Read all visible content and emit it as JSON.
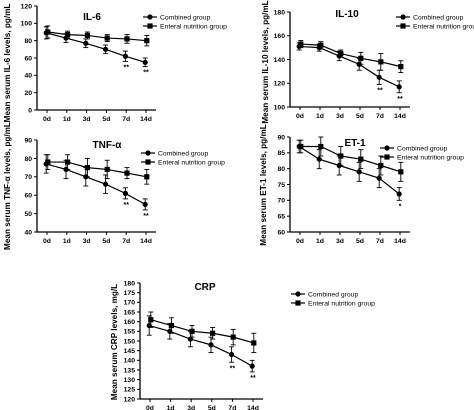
{
  "chart_data": [
    {
      "type": "line",
      "title": "IL-6",
      "ylabel": "Mean serum IL-6 levels, pg/mL",
      "xlabel": "",
      "categories": [
        "0d",
        "1d",
        "3d",
        "5d",
        "7d",
        "14d"
      ],
      "ylim": [
        0,
        120
      ],
      "yticks": [
        0,
        20,
        40,
        60,
        80,
        100,
        120
      ],
      "legend_position": "top-right",
      "series": [
        {
          "name": "Combined group",
          "marker": "circle",
          "values": [
            89,
            83,
            77,
            70,
            62,
            55
          ],
          "err": [
            7,
            5,
            5,
            5,
            6,
            5
          ]
        },
        {
          "name": "Enteral nutrition group",
          "marker": "square",
          "values": [
            90,
            87,
            86,
            83,
            82,
            80
          ],
          "err": [
            7,
            4,
            4,
            4,
            5,
            6
          ]
        }
      ],
      "annotations": [
        {
          "category": "7d",
          "text": "**"
        },
        {
          "category": "14d",
          "text": "**"
        }
      ]
    },
    {
      "type": "line",
      "title": "IL-10",
      "ylabel": "Mean serum IL-10 levels, pg/mL",
      "xlabel": "",
      "categories": [
        "0d",
        "1d",
        "3d",
        "5d",
        "7d",
        "14d"
      ],
      "ylim": [
        100,
        180
      ],
      "yticks": [
        100,
        120,
        140,
        160,
        180
      ],
      "legend_position": "top-right",
      "series": [
        {
          "name": "Combined group",
          "marker": "circle",
          "values": [
            151,
            150,
            143,
            136,
            125,
            117
          ],
          "err": [
            3,
            3,
            4,
            5,
            6,
            5
          ]
        },
        {
          "name": "Enteral nutrition group",
          "marker": "square",
          "values": [
            153,
            152,
            145,
            141,
            138,
            134
          ],
          "err": [
            3,
            3,
            3,
            5,
            7,
            5
          ]
        }
      ],
      "annotations": [
        {
          "category": "7d",
          "text": "**"
        },
        {
          "category": "14d",
          "text": "**"
        }
      ]
    },
    {
      "type": "line",
      "title": "TNF-α",
      "ylabel": "Mean serum TNF-α levels, pg/mL",
      "xlabel": "",
      "categories": [
        "0d",
        "1d",
        "3d",
        "5d",
        "7d",
        "14d"
      ],
      "ylim": [
        40,
        90
      ],
      "yticks": [
        40,
        50,
        60,
        70,
        80,
        90
      ],
      "legend_position": "top-right",
      "series": [
        {
          "name": "Combined group",
          "marker": "circle",
          "values": [
            77,
            74,
            70,
            66,
            61,
            55
          ],
          "err": [
            5,
            5,
            5,
            5,
            3,
            3
          ]
        },
        {
          "name": "Enteral nutrition group",
          "marker": "square",
          "values": [
            78,
            78,
            75,
            74,
            72,
            70
          ],
          "err": [
            4,
            4,
            5,
            5,
            3,
            4
          ]
        }
      ],
      "annotations": [
        {
          "category": "7d",
          "text": "**"
        },
        {
          "category": "14d",
          "text": "**"
        }
      ]
    },
    {
      "type": "line",
      "title": "ET-1",
      "ylabel": "Mean serum ET-1 levels, pg/mL",
      "xlabel": "",
      "categories": [
        "0d",
        "1d",
        "3d",
        "5d",
        "7d",
        "14d"
      ],
      "ylim": [
        60,
        90
      ],
      "yticks": [
        60,
        65,
        70,
        75,
        80,
        85,
        90
      ],
      "legend_position": "top-right",
      "series": [
        {
          "name": "Combined group",
          "marker": "circle",
          "values": [
            87,
            83,
            81,
            79,
            77,
            72
          ],
          "err": [
            2,
            3,
            3,
            3,
            3,
            2
          ]
        },
        {
          "name": "Enteral nutrition group",
          "marker": "square",
          "values": [
            87,
            87,
            84,
            83,
            81,
            79
          ],
          "err": [
            2,
            3,
            3,
            3,
            3,
            3
          ]
        }
      ],
      "annotations": [
        {
          "category": "14d",
          "text": "*"
        }
      ]
    },
    {
      "type": "line",
      "title": "CRP",
      "ylabel": "Mean serum CRP levels, mg/L",
      "xlabel": "",
      "categories": [
        "0d",
        "1d",
        "3d",
        "5d",
        "7d",
        "14d"
      ],
      "ylim": [
        120,
        180
      ],
      "yticks": [
        120,
        125,
        130,
        135,
        140,
        145,
        150,
        155,
        160,
        165,
        170,
        175,
        180
      ],
      "legend_position": "top-right",
      "series": [
        {
          "name": "Combined group",
          "marker": "circle",
          "values": [
            158,
            155,
            151,
            148,
            143,
            137
          ],
          "err": [
            5,
            4,
            4,
            4,
            4,
            3
          ]
        },
        {
          "name": "Enteral nutrition group",
          "marker": "square",
          "values": [
            161,
            158,
            155,
            154,
            152,
            149
          ],
          "err": [
            4,
            4,
            3,
            3,
            4,
            5
          ]
        }
      ],
      "annotations": [
        {
          "category": "7d",
          "text": "**"
        },
        {
          "category": "14d",
          "text": "**"
        }
      ]
    }
  ]
}
